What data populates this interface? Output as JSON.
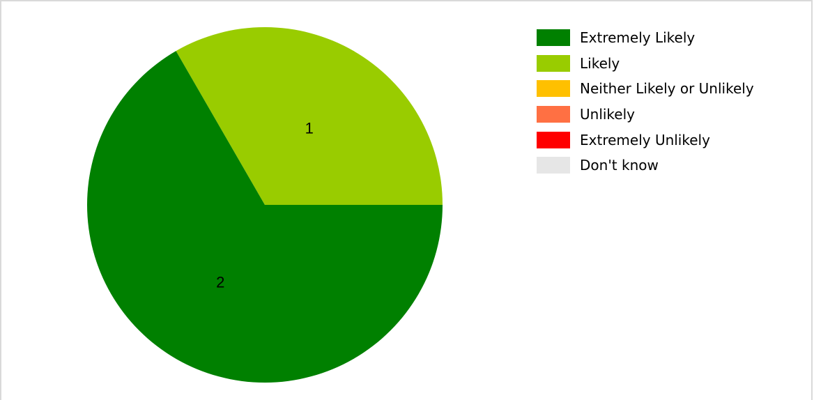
{
  "chart_data": {
    "type": "pie",
    "categories": [
      "Extremely Likely",
      "Likely",
      "Neither Likely or Unlikely",
      "Unlikely",
      "Extremely Unlikely",
      "Don't know"
    ],
    "values": [
      2,
      1,
      0,
      0,
      0,
      0
    ],
    "data_labels": [
      "2",
      "1",
      "",
      "",
      "",
      ""
    ],
    "colors": [
      "#008000",
      "#99CC00",
      "#FFC000",
      "#FF7043",
      "#FF0000",
      "#E6E6E6"
    ],
    "start_angle_deg": 90,
    "direction": "counterclockwise-from-right",
    "legend_position": "top-right"
  }
}
